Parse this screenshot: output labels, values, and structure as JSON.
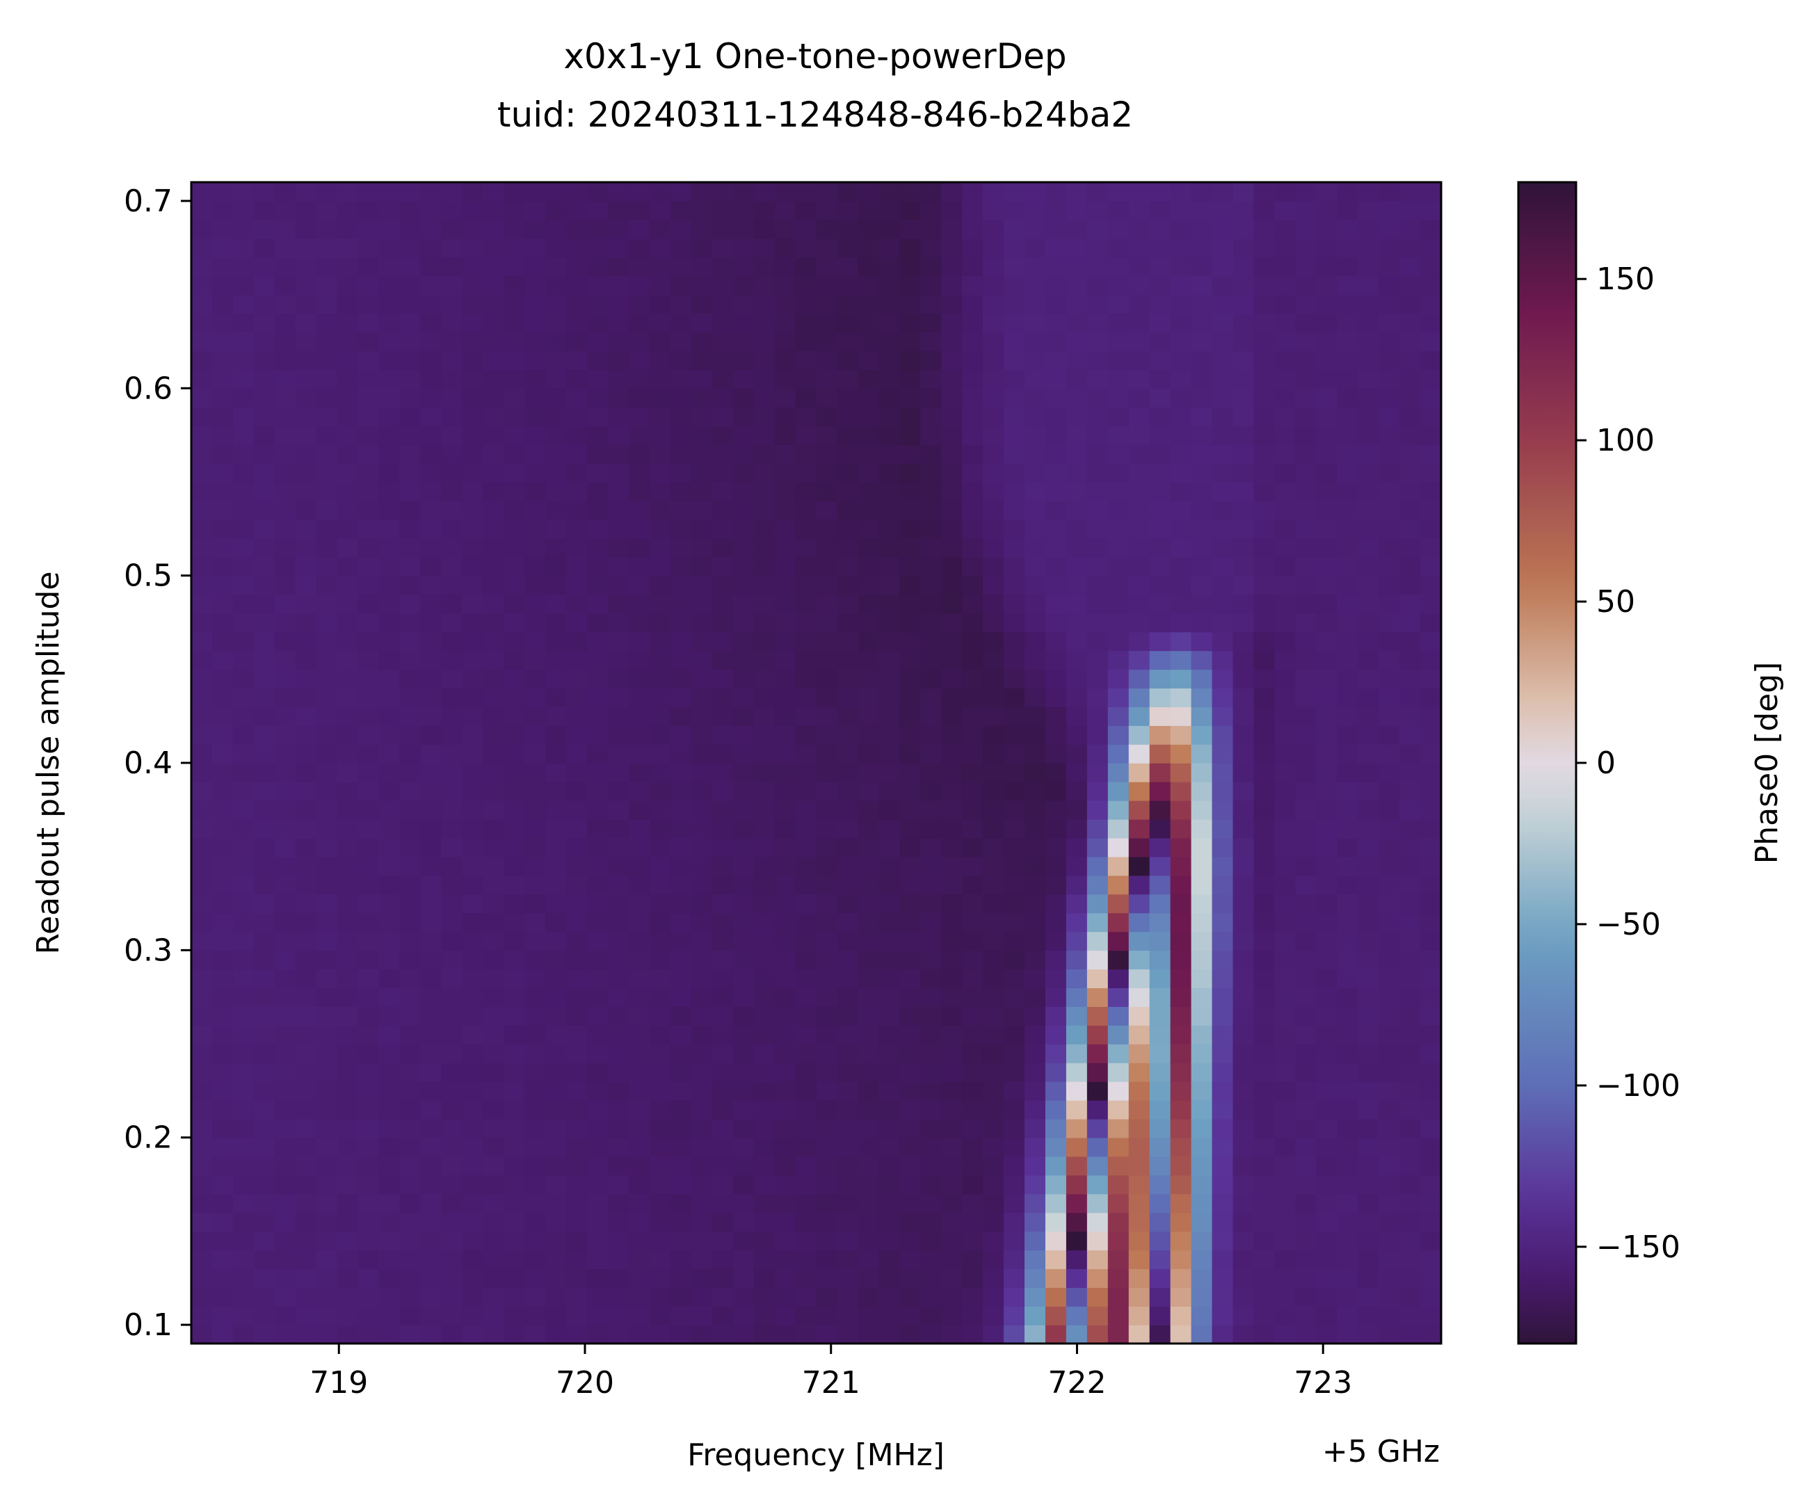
{
  "chart_data": {
    "type": "heatmap",
    "title": "x0x1-y1 One-tone-powerDep",
    "subtitle": "tuid: 20240311-124848-846-b24ba2",
    "xlabel": "Frequency [MHz]",
    "x_offset_label": "+5 GHz",
    "ylabel": "Readout pulse amplitude",
    "colorbar_label": "Phase0 [deg]",
    "colormap": "twilight_shifted",
    "xlim": [
      718.4,
      723.48
    ],
    "ylim": [
      0.09,
      0.71
    ],
    "clim": [
      -180,
      180
    ],
    "x_ticks": [
      719,
      720,
      721,
      722,
      723
    ],
    "x_tick_labels": [
      "719",
      "720",
      "721",
      "722",
      "723"
    ],
    "y_ticks": [
      0.1,
      0.2,
      0.3,
      0.4,
      0.5,
      0.6,
      0.7
    ],
    "y_tick_labels": [
      "0.1",
      "0.2",
      "0.3",
      "0.4",
      "0.5",
      "0.6",
      "0.7"
    ],
    "colorbar_ticks": [
      -150,
      -100,
      -50,
      0,
      50,
      100,
      150
    ],
    "colorbar_tick_labels": [
      "−150",
      "−100",
      "−50",
      "0",
      "50",
      "100",
      "150"
    ],
    "grid": false,
    "x_range": [
      718.4,
      723.48
    ],
    "y_range": [
      0.09,
      0.71
    ],
    "n_x": 60,
    "n_y": 62,
    "phase_model": {
      "background_left": -155,
      "background_min": -172,
      "dip_center_high_power": 721.1,
      "dip_center_low_power": 722.15,
      "transition_amplitude": 0.47,
      "red_region_peak": 135,
      "right_background": -160
    }
  }
}
